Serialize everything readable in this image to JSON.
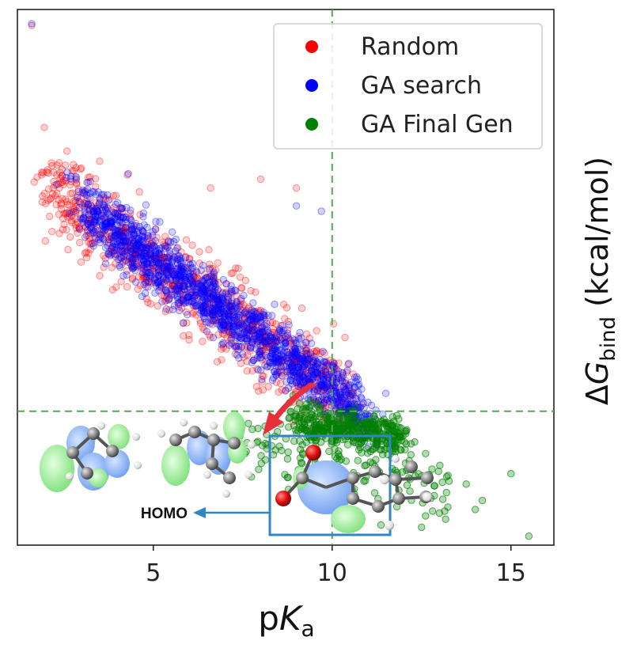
{
  "chart_data": {
    "type": "scatter",
    "xlabel": {
      "main": "p",
      "italic": "K",
      "sub": "a"
    },
    "ylabel": {
      "delta": "Δ",
      "italic": "G",
      "sub": "bind",
      "unit": " (kcal/mol)"
    },
    "xlim": [
      1.2,
      16.2
    ],
    "ylim": [
      -25,
      5
    ],
    "xticks": [
      {
        "value": 5,
        "label": "5"
      },
      {
        "value": 10,
        "label": "10"
      },
      {
        "value": 15,
        "label": "15"
      }
    ],
    "reference_lines": {
      "x": 10,
      "y": -17.5,
      "style": "dashed",
      "color": "#55a855"
    },
    "legend": {
      "placement": "top-right"
    },
    "series": [
      {
        "name": "Random",
        "color": "#ff0000",
        "alpha": 0.18,
        "distribution": [
          {
            "x_range": [
              2.0,
              10.5
            ],
            "y_center_line": [
              [
                2.5,
                -5.5
              ],
              [
                10.5,
                -17.0
              ]
            ],
            "spread": 3.2,
            "n": 900
          }
        ],
        "outliers": [
          [
            1.6,
            4.1
          ],
          [
            2.2,
            -5.0
          ],
          [
            3.5,
            -3.5
          ],
          [
            6.6,
            -5.0
          ],
          [
            8.0,
            -4.5
          ],
          [
            9.0,
            -5.0
          ],
          [
            6.0,
            -13.5
          ],
          [
            7.1,
            -13.0
          ],
          [
            9.5,
            -19.0
          ]
        ]
      },
      {
        "name": "GA search",
        "color": "#0000ff",
        "alpha": 0.18,
        "distribution": [
          {
            "x_range": [
              3.0,
              11.0
            ],
            "y_center_line": [
              [
                3.0,
                -6.0
              ],
              [
                10.8,
                -17.5
              ]
            ],
            "spread": 2.2,
            "n": 1500
          }
        ],
        "outliers": [
          [
            1.6,
            4.2
          ],
          [
            2.3,
            -4.8
          ],
          [
            3.2,
            -6.5
          ],
          [
            4.3,
            -4.2
          ],
          [
            9.0,
            -6.0
          ],
          [
            9.7,
            -6.3
          ],
          [
            11.0,
            -17.0
          ],
          [
            11.5,
            -16.5
          ]
        ]
      },
      {
        "name": "GA Final Gen",
        "color": "#008000",
        "alpha": 0.3,
        "distribution": [
          {
            "x_range": [
              9.0,
              12.0
            ],
            "y_center_line": [
              [
                9.0,
                -18.0
              ],
              [
                12.0,
                -19.0
              ]
            ],
            "spread": 1.4,
            "n": 400
          },
          {
            "x_range": [
              7.5,
              13.5
            ],
            "y_center_line": [
              [
                7.5,
                -19.0
              ],
              [
                13.5,
                -22.0
              ]
            ],
            "spread": 2.6,
            "n": 160
          }
        ],
        "outliers": [
          [
            15.5,
            -24.5
          ],
          [
            15.0,
            -21.0
          ],
          [
            14.2,
            -22.5
          ],
          [
            13.0,
            -23.2
          ],
          [
            14.0,
            -23.0
          ],
          [
            12.5,
            -24.0
          ],
          [
            6.2,
            -19.0
          ]
        ]
      }
    ]
  },
  "annotation": {
    "homo_label": "HOMO"
  }
}
